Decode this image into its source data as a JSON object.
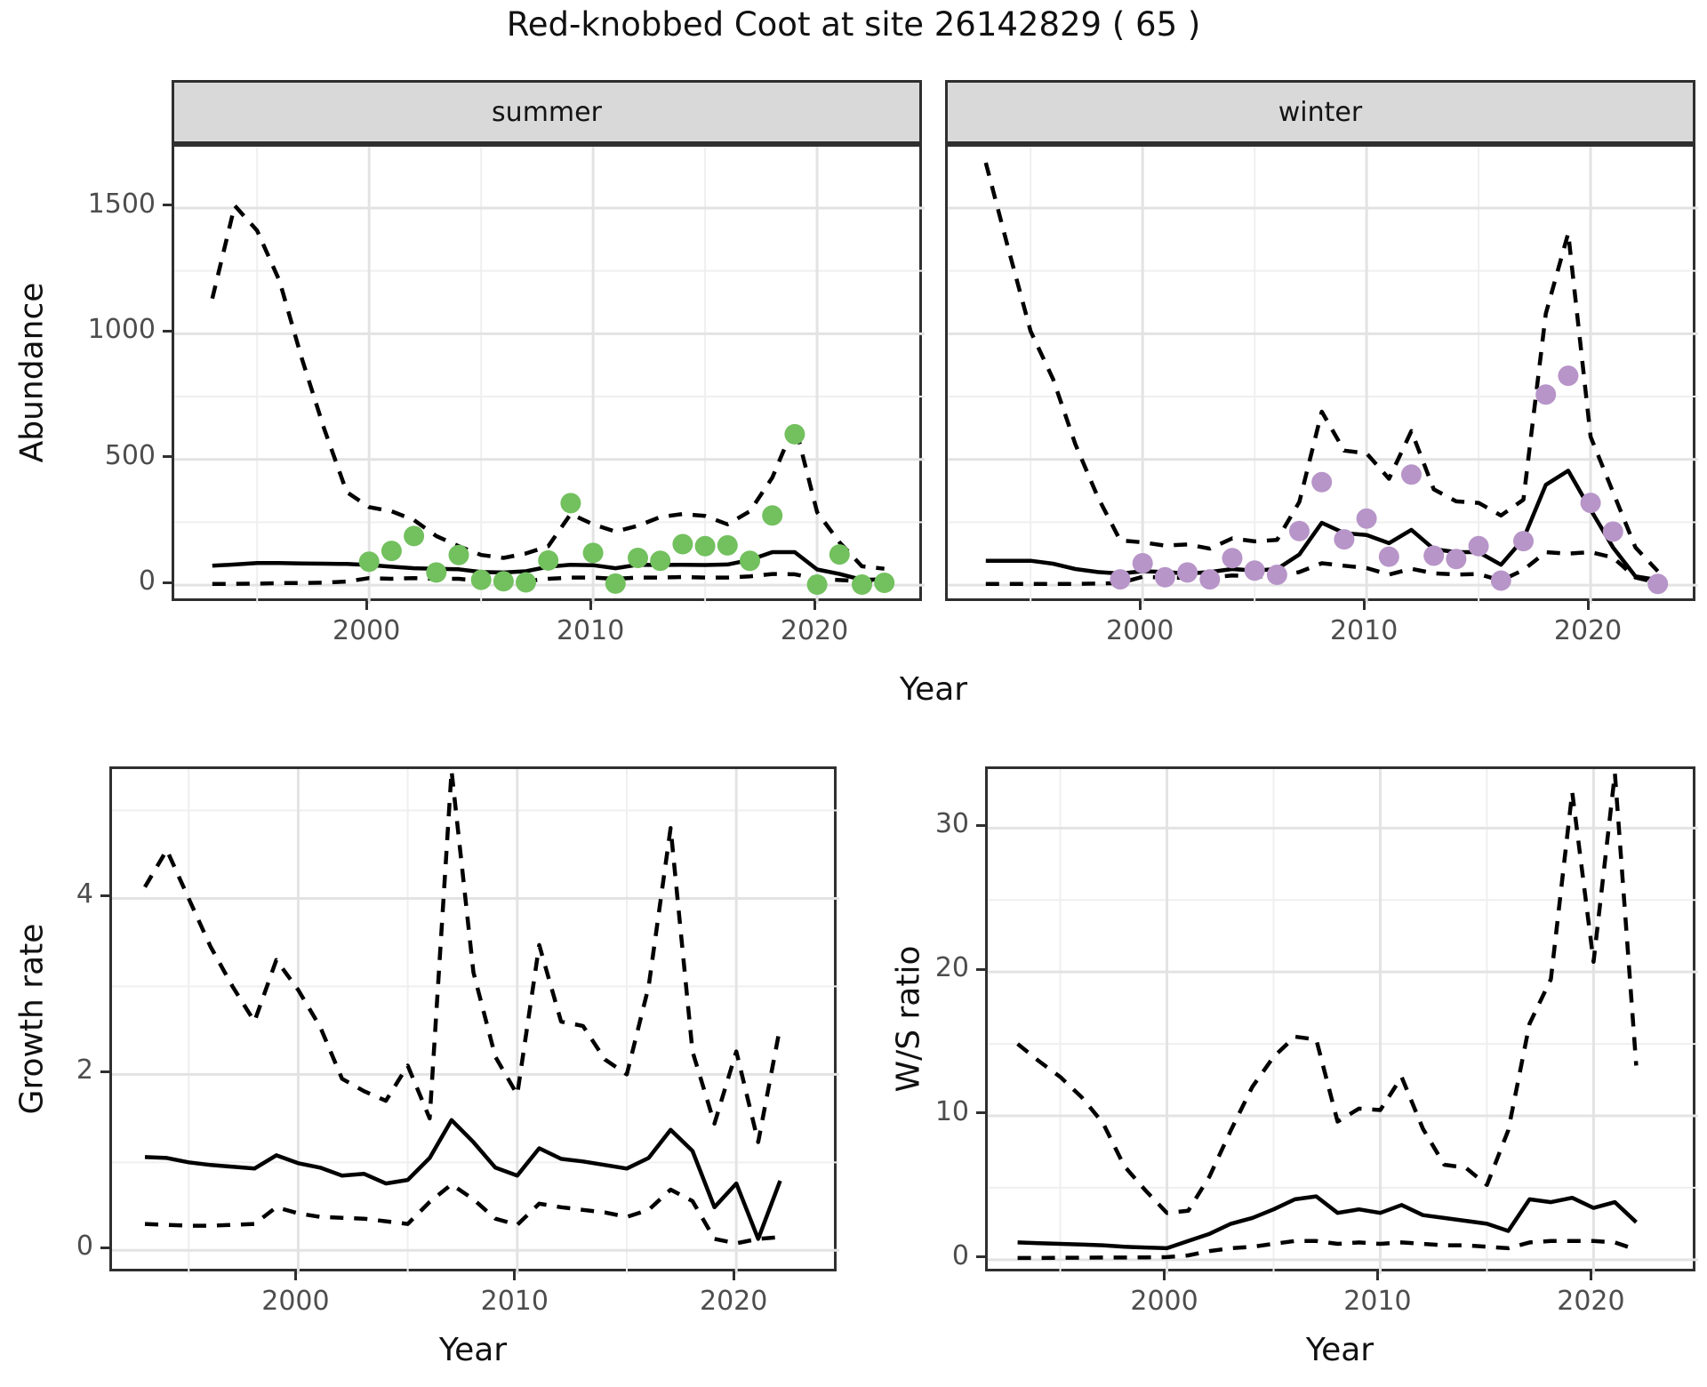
{
  "title": "Red-knobbed Coot at site 26142829 ( 65 )",
  "axis_titles": {
    "x": "Year",
    "abundance": "Abundance",
    "growth": "Growth rate",
    "ratio": "W/S ratio"
  },
  "facet_labels": {
    "summer": "summer",
    "winter": "winter"
  },
  "colors": {
    "summer_point": "#72c05e",
    "winter_point": "#b795c8",
    "line": "#000000",
    "grid_major": "#e3e3e3",
    "grid_minor": "#efefef",
    "strip_bg": "#d9d9d9",
    "panel_border": "#2f2f2f",
    "tick_text": "#4d4d4d",
    "title_text": "#111111"
  },
  "chart_data": [
    {
      "id": "summer",
      "type": "line",
      "title": "summer abundance",
      "xlabel": "Year",
      "ylabel": "Abundance",
      "x": [
        1993,
        1994,
        1995,
        1996,
        1997,
        1998,
        1999,
        2000,
        2001,
        2002,
        2003,
        2004,
        2005,
        2006,
        2007,
        2008,
        2009,
        2010,
        2011,
        2012,
        2013,
        2014,
        2015,
        2016,
        2017,
        2018,
        2019,
        2020,
        2021,
        2022,
        2023
      ],
      "series": [
        {
          "name": "modelled mean",
          "style": "solid",
          "values": [
            77,
            82,
            88,
            88,
            86,
            85,
            84,
            80,
            73,
            67,
            65,
            63,
            52,
            50,
            55,
            73,
            81,
            79,
            67,
            81,
            80,
            81,
            80,
            82,
            100,
            131,
            131,
            62,
            44,
            21,
            23
          ]
        },
        {
          "name": "upper CI",
          "style": "dashed",
          "values": [
            1140,
            1510,
            1410,
            1210,
            900,
            620,
            370,
            310,
            294,
            259,
            195,
            155,
            120,
            108,
            126,
            155,
            283,
            242,
            213,
            236,
            271,
            283,
            275,
            242,
            294,
            428,
            640,
            290,
            170,
            75,
            65
          ]
        },
        {
          "name": "lower CI",
          "style": "dashed",
          "values": [
            5,
            5,
            6,
            8,
            8,
            10,
            14,
            28,
            25,
            28,
            25,
            25,
            16,
            14,
            16,
            25,
            30,
            30,
            25,
            30,
            30,
            32,
            30,
            30,
            35,
            44,
            43,
            25,
            20,
            16,
            18
          ]
        }
      ],
      "points": {
        "name": "observed counts",
        "color_key": "summer_point",
        "xy": [
          [
            2000,
            93
          ],
          [
            2001,
            136
          ],
          [
            2002,
            195
          ],
          [
            2003,
            50
          ],
          [
            2004,
            120
          ],
          [
            2005,
            21
          ],
          [
            2006,
            15
          ],
          [
            2007,
            11
          ],
          [
            2008,
            98
          ],
          [
            2009,
            326
          ],
          [
            2010,
            128
          ],
          [
            2011,
            6
          ],
          [
            2012,
            108
          ],
          [
            2013,
            97
          ],
          [
            2014,
            163
          ],
          [
            2015,
            155
          ],
          [
            2016,
            158
          ],
          [
            2017,
            97
          ],
          [
            2018,
            277
          ],
          [
            2019,
            600
          ],
          [
            2020,
            2
          ],
          [
            2021,
            122
          ],
          [
            2022,
            2
          ],
          [
            2023,
            9
          ]
        ]
      },
      "xlim": [
        1991.3,
        2024.8
      ],
      "ylim": [
        -74,
        1744
      ],
      "xticks": [
        2000,
        2010,
        2020
      ],
      "yticks": [
        0,
        500,
        1000,
        1500
      ],
      "xminor": [
        1995,
        2005,
        2015
      ],
      "yminor": [
        250,
        750,
        1250
      ],
      "y_axis_labels": true,
      "grid": true,
      "legend": "none"
    },
    {
      "id": "winter",
      "type": "line",
      "title": "winter abundance",
      "xlabel": "Year",
      "ylabel": "Abundance",
      "x": [
        1993,
        1994,
        1995,
        1996,
        1997,
        1998,
        1999,
        2000,
        2001,
        2002,
        2003,
        2004,
        2005,
        2006,
        2007,
        2008,
        2009,
        2010,
        2011,
        2012,
        2013,
        2014,
        2015,
        2016,
        2017,
        2018,
        2019,
        2020,
        2021,
        2022,
        2023
      ],
      "series": [
        {
          "name": "modelled mean",
          "style": "solid",
          "values": [
            97,
            97,
            97,
            85,
            64,
            52,
            46,
            55,
            52,
            46,
            52,
            64,
            58,
            64,
            122,
            248,
            207,
            199,
            167,
            220,
            143,
            131,
            131,
            81,
            184,
            399,
            455,
            300,
            150,
            35,
            20
          ]
        },
        {
          "name": "upper CI",
          "style": "dashed",
          "values": [
            1680,
            1340,
            1010,
            820,
            560,
            350,
            178,
            170,
            157,
            162,
            145,
            186,
            174,
            180,
            331,
            690,
            535,
            524,
            423,
            613,
            381,
            333,
            327,
            277,
            340,
            1080,
            1400,
            590,
            370,
            150,
            55
          ]
        },
        {
          "name": "lower CI",
          "style": "dashed",
          "values": [
            5,
            5,
            5,
            5,
            5,
            6,
            8,
            33,
            30,
            29,
            31,
            38,
            35,
            33,
            52,
            87,
            77,
            68,
            42,
            65,
            47,
            42,
            44,
            18,
            60,
            131,
            125,
            131,
            110,
            30,
            10
          ]
        }
      ],
      "points": {
        "name": "observed counts",
        "color_key": "winter_point",
        "xy": [
          [
            1999,
            23
          ],
          [
            2000,
            87
          ],
          [
            2001,
            31
          ],
          [
            2002,
            50
          ],
          [
            2003,
            23
          ],
          [
            2004,
            107
          ],
          [
            2005,
            58
          ],
          [
            2006,
            41
          ],
          [
            2007,
            215
          ],
          [
            2008,
            410
          ],
          [
            2009,
            182
          ],
          [
            2010,
            265
          ],
          [
            2011,
            113
          ],
          [
            2012,
            440
          ],
          [
            2013,
            117
          ],
          [
            2014,
            104
          ],
          [
            2015,
            155
          ],
          [
            2016,
            18
          ],
          [
            2017,
            175
          ],
          [
            2018,
            758
          ],
          [
            2019,
            833
          ],
          [
            2020,
            327
          ],
          [
            2021,
            213
          ],
          [
            2023,
            5
          ]
        ]
      },
      "xlim": [
        1991.3,
        2024.8
      ],
      "ylim": [
        -74,
        1744
      ],
      "xticks": [
        2000,
        2010,
        2020
      ],
      "yticks": [
        0,
        500,
        1000,
        1500
      ],
      "xminor": [
        1995,
        2005,
        2015
      ],
      "yminor": [
        250,
        750,
        1250
      ],
      "y_axis_labels": false,
      "grid": true,
      "legend": "none"
    },
    {
      "id": "growth",
      "type": "line",
      "title": "Growth rate",
      "xlabel": "Year",
      "ylabel": "Growth rate",
      "x": [
        1993,
        1994,
        1995,
        1996,
        1997,
        1998,
        1999,
        2000,
        2001,
        2002,
        2003,
        2004,
        2005,
        2006,
        2007,
        2008,
        2009,
        2010,
        2011,
        2012,
        2013,
        2014,
        2015,
        2016,
        2017,
        2018,
        2019,
        2020,
        2021,
        2022
      ],
      "series": [
        {
          "name": "modelled mean",
          "style": "solid",
          "values": [
            1.06,
            1.05,
            1.0,
            0.97,
            0.95,
            0.93,
            1.08,
            0.99,
            0.94,
            0.85,
            0.87,
            0.76,
            0.8,
            1.05,
            1.48,
            1.23,
            0.94,
            0.85,
            1.16,
            1.04,
            1.01,
            0.97,
            0.93,
            1.05,
            1.37,
            1.13,
            0.49,
            0.76,
            0.13,
            0.79
          ]
        },
        {
          "name": "upper CI",
          "style": "dashed",
          "values": [
            4.13,
            4.55,
            4.0,
            3.45,
            3.0,
            2.6,
            3.3,
            2.96,
            2.54,
            1.95,
            1.81,
            1.7,
            2.1,
            1.5,
            5.45,
            3.16,
            2.2,
            1.77,
            3.47,
            2.6,
            2.55,
            2.17,
            2.0,
            3.0,
            4.8,
            2.26,
            1.44,
            2.26,
            1.23,
            2.54
          ]
        },
        {
          "name": "lower CI",
          "style": "dashed",
          "values": [
            0.3,
            0.29,
            0.28,
            0.28,
            0.29,
            0.3,
            0.49,
            0.42,
            0.38,
            0.37,
            0.36,
            0.33,
            0.3,
            0.55,
            0.75,
            0.58,
            0.36,
            0.29,
            0.53,
            0.49,
            0.46,
            0.43,
            0.38,
            0.46,
            0.69,
            0.56,
            0.13,
            0.08,
            0.13,
            0.15
          ]
        }
      ],
      "points": null,
      "xlim": [
        1991.5,
        2024.7
      ],
      "ylim": [
        -0.27,
        5.47
      ],
      "xticks": [
        2000,
        2010,
        2020
      ],
      "yticks": [
        0,
        2,
        4
      ],
      "xminor": [
        1995,
        2005,
        2015
      ],
      "yminor": [
        1,
        3,
        5
      ],
      "y_axis_labels": true,
      "grid": true,
      "legend": "none"
    },
    {
      "id": "ratio",
      "type": "line",
      "title": "W/S ratio",
      "xlabel": "Year",
      "ylabel": "W/S ratio",
      "x": [
        1993,
        1994,
        1995,
        1996,
        1997,
        1998,
        1999,
        2000,
        2001,
        2002,
        2003,
        2004,
        2005,
        2006,
        2007,
        2008,
        2009,
        2010,
        2011,
        2012,
        2013,
        2014,
        2015,
        2016,
        2017,
        2018,
        2019,
        2020,
        2021,
        2022
      ],
      "series": [
        {
          "name": "modelled mean",
          "style": "solid",
          "values": [
            1.2,
            1.15,
            1.1,
            1.05,
            1.0,
            0.9,
            0.85,
            0.8,
            1.3,
            1.8,
            2.5,
            2.9,
            3.5,
            4.2,
            4.4,
            3.25,
            3.5,
            3.25,
            3.8,
            3.1,
            2.9,
            2.7,
            2.5,
            2.0,
            4.2,
            4.0,
            4.3,
            3.6,
            4.0,
            2.6
          ]
        },
        {
          "name": "upper CI",
          "style": "dashed",
          "values": [
            15.0,
            13.8,
            12.7,
            11.3,
            9.5,
            6.5,
            4.8,
            3.25,
            3.4,
            5.8,
            9.0,
            12.0,
            14.1,
            15.5,
            15.3,
            9.6,
            10.5,
            10.4,
            12.7,
            9.1,
            6.6,
            6.4,
            5.2,
            9.0,
            16.4,
            19.5,
            32.5,
            20.7,
            33.8,
            13.5
          ]
        },
        {
          "name": "lower CI",
          "style": "dashed",
          "values": [
            0.12,
            0.12,
            0.13,
            0.14,
            0.15,
            0.15,
            0.16,
            0.18,
            0.3,
            0.6,
            0.8,
            0.9,
            1.1,
            1.3,
            1.3,
            1.1,
            1.2,
            1.1,
            1.2,
            1.1,
            1.0,
            1.0,
            0.9,
            0.8,
            1.2,
            1.3,
            1.3,
            1.3,
            1.2,
            0.7
          ]
        }
      ],
      "points": null,
      "xlim": [
        1991.6,
        2024.9
      ],
      "ylim": [
        -1.0,
        34.1
      ],
      "xticks": [
        2000,
        2010,
        2020
      ],
      "yticks": [
        0,
        10,
        20,
        30
      ],
      "xminor": [
        1995,
        2005,
        2015
      ],
      "yminor": [
        5,
        15,
        25
      ],
      "y_axis_labels": true,
      "grid": true,
      "legend": "none"
    }
  ]
}
